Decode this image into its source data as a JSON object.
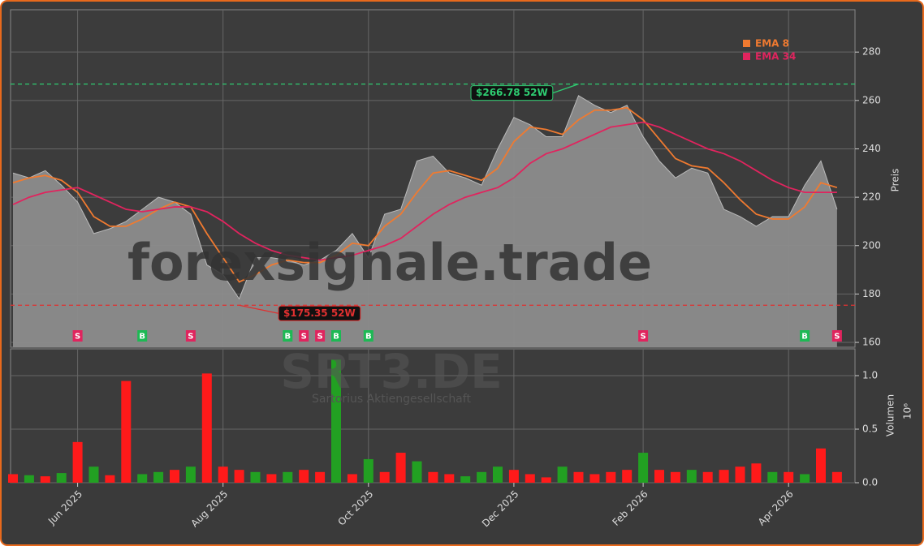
{
  "chart_data": {
    "type": "stock",
    "watermark": "forexsignale.trade",
    "symbol": "SRT3.DE",
    "company": "Sartorius Aktiengesellschaft",
    "y_label": "Preis",
    "y2_label": "Volumen",
    "y2_exponent": "10⁶",
    "categories": [
      null,
      null,
      null,
      null,
      "Jun 2025",
      null,
      null,
      null,
      null,
      null,
      null,
      null,
      null,
      "Aug 2025",
      null,
      null,
      null,
      null,
      null,
      null,
      null,
      null,
      "Oct 2025",
      null,
      null,
      null,
      null,
      null,
      null,
      null,
      null,
      "Dec 2025",
      null,
      null,
      null,
      null,
      null,
      null,
      null,
      "Feb 2026",
      null,
      null,
      null,
      null,
      null,
      null,
      null,
      null,
      "Apr 2026",
      null,
      null,
      null
    ],
    "price": {
      "name": "Preis",
      "color": "#8c8c8c",
      "values": [
        230,
        228,
        231,
        225,
        218,
        205,
        207,
        210,
        215,
        220,
        218,
        213,
        192,
        188,
        178,
        195,
        195,
        194,
        192,
        194,
        198,
        205,
        195,
        213,
        215,
        235,
        237,
        230,
        228,
        225,
        240,
        253,
        250,
        245,
        245,
        262,
        258,
        255,
        258,
        245,
        235,
        228,
        232,
        230,
        215,
        212,
        208,
        212,
        212,
        225,
        235,
        215
      ]
    },
    "series": [
      {
        "name": "EMA 8",
        "color": "#f07a30",
        "values": [
          226,
          228,
          229,
          227,
          222,
          212,
          208,
          208,
          211,
          215,
          218,
          216,
          205,
          195,
          185,
          188,
          192,
          194,
          193,
          193,
          196,
          201,
          200,
          208,
          213,
          222,
          230,
          231,
          229,
          227,
          232,
          243,
          249,
          248,
          246,
          252,
          256,
          256,
          257,
          252,
          244,
          236,
          233,
          232,
          226,
          219,
          213,
          211,
          211,
          216,
          226,
          224
        ]
      },
      {
        "name": "EMA 34",
        "color": "#e0245e",
        "values": [
          217,
          220,
          222,
          223,
          224,
          221,
          218,
          215,
          214,
          215,
          216,
          216,
          214,
          210,
          205,
          201,
          198,
          196,
          195,
          194,
          195,
          196,
          198,
          200,
          203,
          208,
          213,
          217,
          220,
          222,
          224,
          228,
          234,
          238,
          240,
          243,
          246,
          249,
          250,
          251,
          249,
          246,
          243,
          240,
          238,
          235,
          231,
          227,
          224,
          222,
          222,
          222
        ]
      }
    ],
    "signals": [
      null,
      null,
      null,
      null,
      "S",
      null,
      null,
      null,
      "B",
      null,
      null,
      "S",
      null,
      null,
      null,
      null,
      null,
      "B",
      "S",
      "S",
      "B",
      null,
      "B",
      null,
      null,
      null,
      null,
      null,
      null,
      null,
      null,
      null,
      null,
      null,
      null,
      null,
      null,
      null,
      null,
      "S",
      null,
      null,
      null,
      null,
      null,
      null,
      null,
      null,
      null,
      "B",
      null,
      "S"
    ],
    "signal_colors": {
      "B": "#1db954",
      "S": "#e0245e"
    },
    "high": {
      "value": 266.78,
      "label": "$266.78 52W",
      "color": "#2ecc71"
    },
    "low": {
      "value": 175.35,
      "label": "$175.35 52W",
      "color": "#e03030"
    },
    "ylim": [
      158,
      297.5
    ],
    "yticks": [
      160,
      180,
      200,
      220,
      240,
      260,
      280
    ],
    "volume": {
      "name": "Volumen",
      "axis": "y2",
      "values": [
        0.08,
        0.07,
        0.06,
        0.09,
        0.38,
        0.15,
        0.07,
        0.95,
        0.08,
        0.1,
        0.12,
        0.15,
        1.02,
        0.15,
        0.12,
        0.1,
        0.08,
        0.1,
        0.12,
        0.1,
        1.15,
        0.08,
        0.22,
        0.1,
        0.28,
        0.2,
        0.1,
        0.08,
        0.06,
        0.1,
        0.15,
        0.12,
        0.08,
        0.05,
        0.15,
        0.1,
        0.08,
        0.1,
        0.12,
        0.28,
        0.12,
        0.1,
        0.12,
        0.1,
        0.12,
        0.15,
        0.18,
        0.1,
        0.1,
        0.08,
        0.32,
        0.1
      ],
      "colors": [
        "#ff1a1a",
        "#22a022",
        "#ff1a1a",
        "#22a022",
        "#ff1a1a",
        "#22a022",
        "#ff1a1a",
        "#ff1a1a",
        "#22a022",
        "#22a022",
        "#ff1a1a",
        "#22a022",
        "#ff1a1a",
        "#ff1a1a",
        "#ff1a1a",
        "#22a022",
        "#ff1a1a",
        "#22a022",
        "#ff1a1a",
        "#ff1a1a",
        "#22a022",
        "#ff1a1a",
        "#22a022",
        "#ff1a1a",
        "#ff1a1a",
        "#22a022",
        "#ff1a1a",
        "#ff1a1a",
        "#22a022",
        "#22a022",
        "#22a022",
        "#ff1a1a",
        "#ff1a1a",
        "#ff1a1a",
        "#22a022",
        "#ff1a1a",
        "#ff1a1a",
        "#ff1a1a",
        "#ff1a1a",
        "#22a022",
        "#ff1a1a",
        "#ff1a1a",
        "#22a022",
        "#ff1a1a",
        "#ff1a1a",
        "#ff1a1a",
        "#ff1a1a",
        "#22a022",
        "#ff1a1a",
        "#22a022",
        "#ff1a1a",
        "#ff1a1a"
      ]
    },
    "y2lim": [
      0,
      1.25
    ],
    "y2ticks": [
      {
        "value": 0,
        "label": "0.0"
      },
      {
        "value": 0.5,
        "label": "0.5"
      },
      {
        "value": 1,
        "label": "1.0"
      }
    ],
    "grid": true
  }
}
